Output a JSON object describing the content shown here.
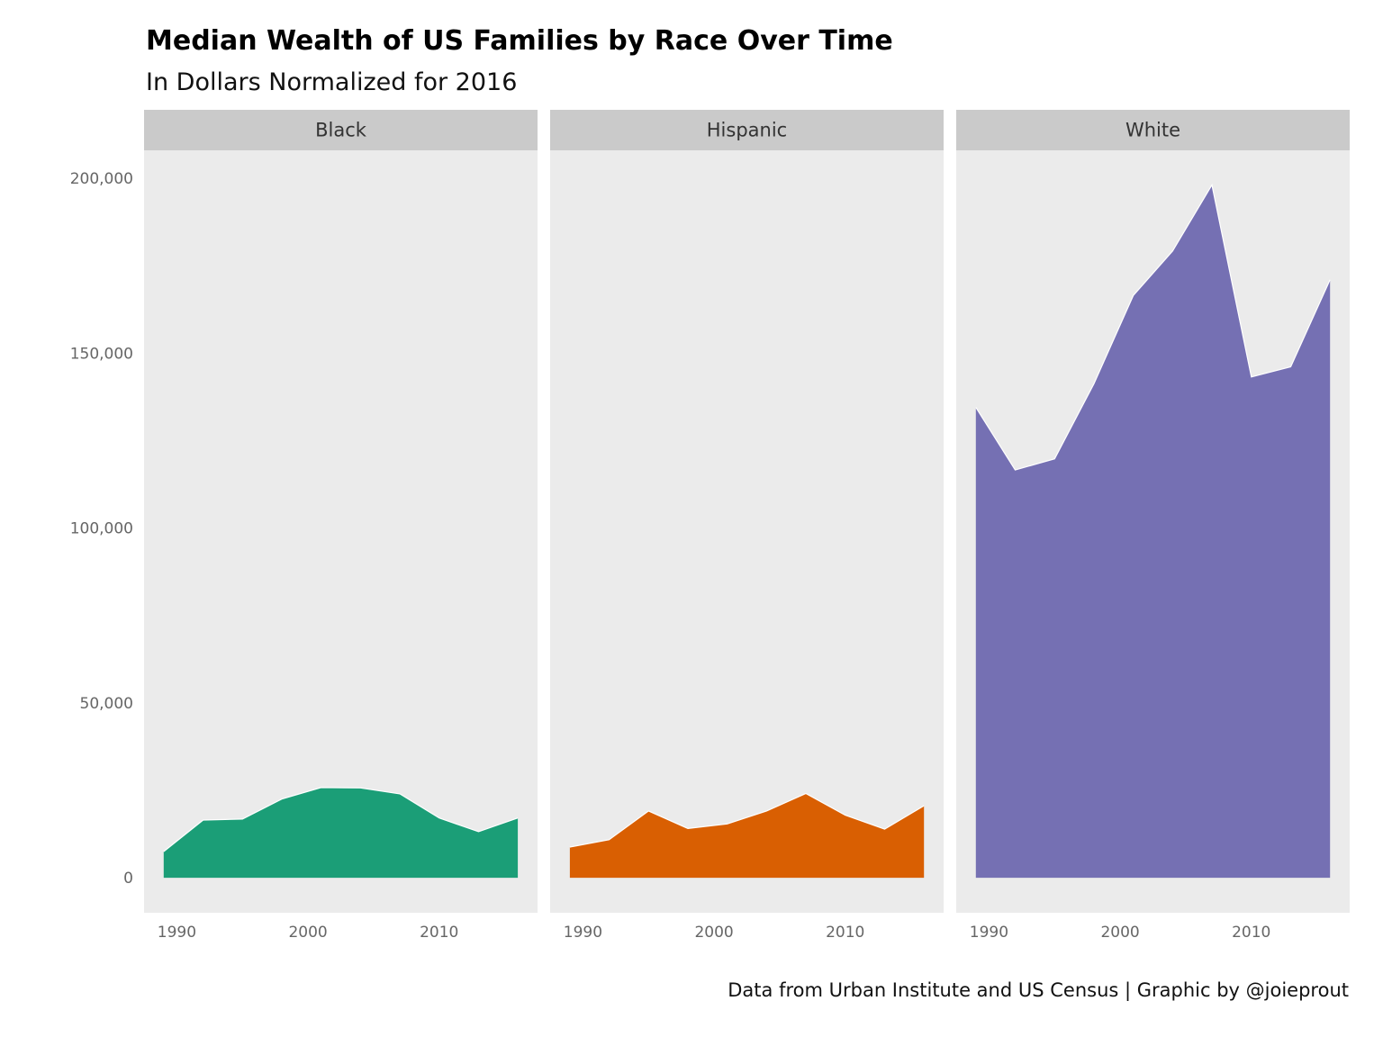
{
  "title": "Median Wealth of US Families by Race Over Time",
  "subtitle": "In Dollars Normalized for 2016",
  "caption": "Data from Urban Institute and US Census | Graphic by @joieprout",
  "chart_data": {
    "type": "area",
    "facet_by": "race",
    "x": [
      1989,
      1992,
      1995,
      1998,
      2001,
      2004,
      2007,
      2010,
      2013,
      2016
    ],
    "xlim": [
      1987.5,
      2017.5
    ],
    "x_ticks": [
      1990,
      2000,
      2010
    ],
    "x_tick_labels": [
      "1990",
      "2000",
      "2010"
    ],
    "ylim": [
      -10000,
      208000
    ],
    "y_ticks": [
      0,
      50000,
      100000,
      150000,
      200000
    ],
    "y_tick_labels": [
      "0",
      "50,000",
      "100,000",
      "150,000",
      "200,000"
    ],
    "xlabel": "",
    "ylabel": "",
    "grid": false,
    "legend": "none",
    "panel_background": "#ebebeb",
    "strip_background": "#cacaca",
    "series": [
      {
        "name": "Black",
        "color": "#1b9e77",
        "values": [
          7500,
          16500,
          16800,
          22500,
          25800,
          25700,
          24000,
          17100,
          13200,
          17100
        ]
      },
      {
        "name": "Hispanic",
        "color": "#d95f02",
        "values": [
          8800,
          10900,
          19100,
          14100,
          15400,
          19100,
          24100,
          17900,
          13900,
          20600
        ]
      },
      {
        "name": "White",
        "color": "#7570b3",
        "values": [
          134500,
          116600,
          119800,
          141300,
          166500,
          179200,
          198100,
          143200,
          146100,
          171000
        ]
      }
    ]
  }
}
